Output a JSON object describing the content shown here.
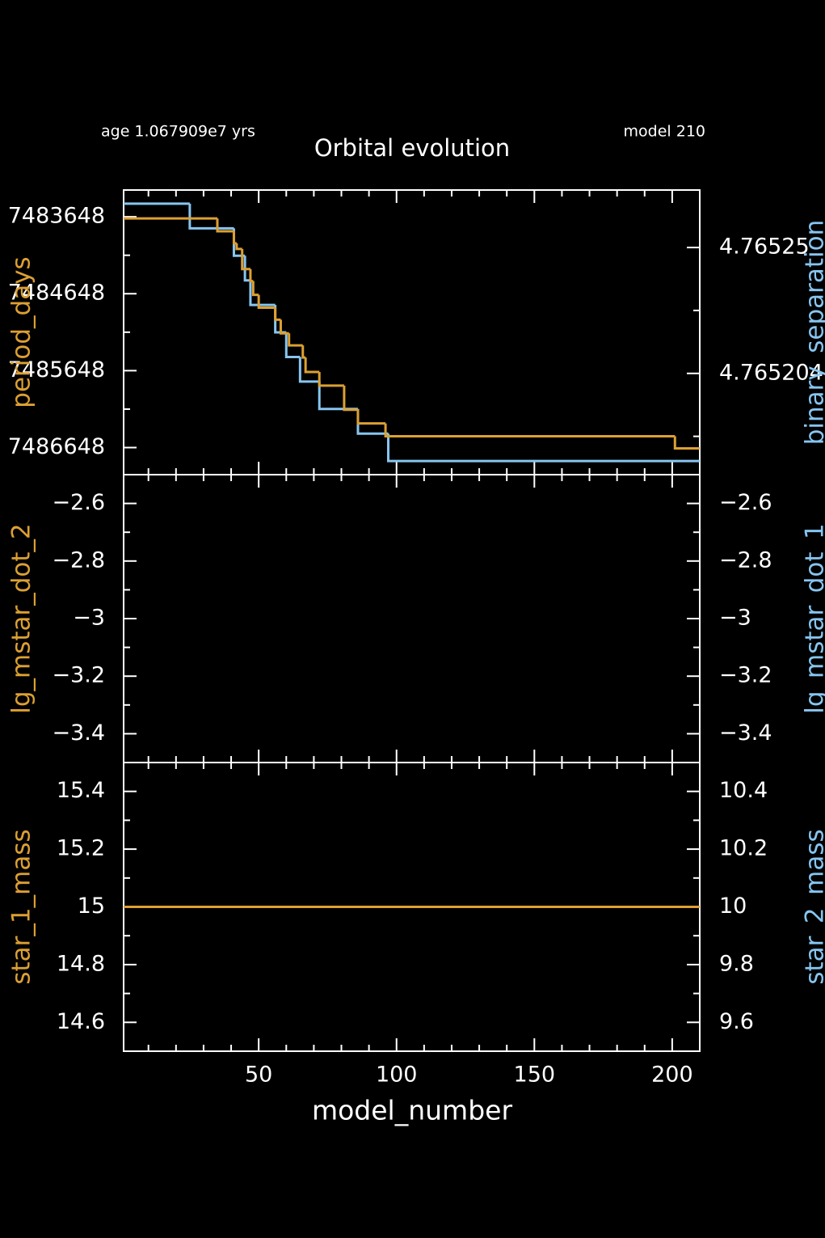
{
  "header": {
    "age": "age 1.067909e7 yrs",
    "model": "model 210",
    "title": "Orbital evolution"
  },
  "x_axis": {
    "label": "model_number",
    "xlim": [
      1,
      210
    ],
    "xticks": [
      50,
      100,
      150,
      200
    ]
  },
  "chart_data": [
    {
      "type": "step",
      "ylabel": "period_days",
      "y2label": "binary_separation",
      "ylim": [
        7487000,
        7483300
      ],
      "yticks": [
        7483648,
        7484648,
        7485648,
        7486648
      ],
      "y2lim": [
        4.765167,
        4.765271
      ],
      "y2ticks": [
        4.76525,
        4.765204
      ],
      "series": [
        {
          "name": "binary_separation",
          "axis": "y2",
          "color": "#87c5f0",
          "x": [
            1,
            25,
            41,
            45,
            47,
            56,
            60,
            65,
            72,
            86,
            97
          ],
          "values": [
            4.765266,
            4.765257,
            4.765247,
            4.765238,
            4.765229,
            4.765219,
            4.76521,
            4.765201,
            4.765191,
            4.765182,
            4.765172
          ]
        },
        {
          "name": "period_days",
          "color": "#dca032",
          "x": [
            1,
            35,
            41,
            42,
            44,
            47,
            48,
            50,
            56,
            58,
            61,
            66,
            67,
            72,
            81,
            86,
            96,
            201
          ],
          "values": [
            7483669,
            7483836,
            7483993,
            7484066,
            7484327,
            7484484,
            7484662,
            7484829,
            7484986,
            7485163,
            7485320,
            7485477,
            7485665,
            7485843,
            7486156,
            7486334,
            7486501,
            7486658
          ]
        }
      ]
    },
    {
      "type": "step",
      "ylabel": "lg_mstar_dot_2",
      "y2label": "lg_mstar_dot_1",
      "ylim": [
        -3.5,
        -2.5
      ],
      "yticks": [
        {
          "value": -2.6,
          "label": "−2.6"
        },
        {
          "value": -2.8,
          "label": "−2.8"
        },
        {
          "value": -3,
          "label": "−3"
        },
        {
          "value": -3.2,
          "label": "−3.2"
        },
        {
          "value": -3.4,
          "label": "−3.4"
        }
      ],
      "y2lim": [
        -3.5,
        -2.5
      ],
      "y2ticks": [
        {
          "value": -2.6,
          "label": "−2.6"
        },
        {
          "value": -2.8,
          "label": "−2.8"
        },
        {
          "value": -3,
          "label": "−3"
        },
        {
          "value": -3.2,
          "label": "−3.2"
        },
        {
          "value": -3.4,
          "label": "−3.4"
        }
      ],
      "series": []
    },
    {
      "type": "step",
      "ylabel": "star_1_mass",
      "y2label": "star_2_mass",
      "ylim": [
        14.5,
        15.5
      ],
      "yticks": [
        15.4,
        15.2,
        15,
        14.8,
        14.6
      ],
      "y2lim": [
        9.5,
        10.5
      ],
      "y2ticks": [
        10.4,
        10.2,
        10,
        9.8,
        9.6
      ],
      "series": [
        {
          "name": "star_2_mass",
          "axis": "y2",
          "color": "#87c5f0",
          "x": [
            1
          ],
          "values": [
            10
          ]
        },
        {
          "name": "star_1_mass",
          "color": "#dca032",
          "x": [
            1
          ],
          "values": [
            15
          ]
        }
      ]
    }
  ]
}
